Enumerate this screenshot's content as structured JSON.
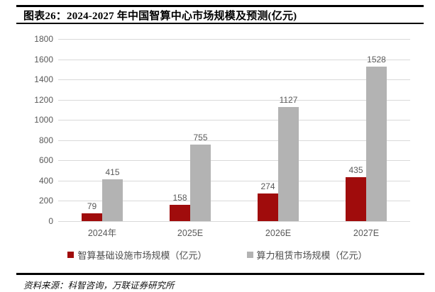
{
  "header": {
    "title": "图表26：2024-2027 年中国智算中心市场规模及预测(亿元)"
  },
  "chart_data": {
    "type": "bar",
    "title": "2024-2027 年中国智算中心市场规模及预测(亿元)",
    "categories": [
      "2024年",
      "2025E",
      "2026E",
      "2027E"
    ],
    "series": [
      {
        "name": "智算基础设施市场规模（亿元）",
        "color": "#a00c0c",
        "values": [
          79,
          158,
          274,
          435
        ]
      },
      {
        "name": "算力租赁市场规模（亿元）",
        "color": "#b3b3b3",
        "values": [
          415,
          755,
          1127,
          1528
        ]
      }
    ],
    "ylim": [
      0,
      1800
    ],
    "yticks": [
      0,
      200,
      400,
      600,
      800,
      1000,
      1200,
      1400,
      1600,
      1800
    ],
    "grid": "horizontal",
    "gridline_color": "#d9d9d9",
    "legend_position": "bottom",
    "bar_labels": true,
    "xlabel": "",
    "ylabel": ""
  },
  "footer": {
    "source": "资料来源：科智咨询，万联证券研究所"
  }
}
